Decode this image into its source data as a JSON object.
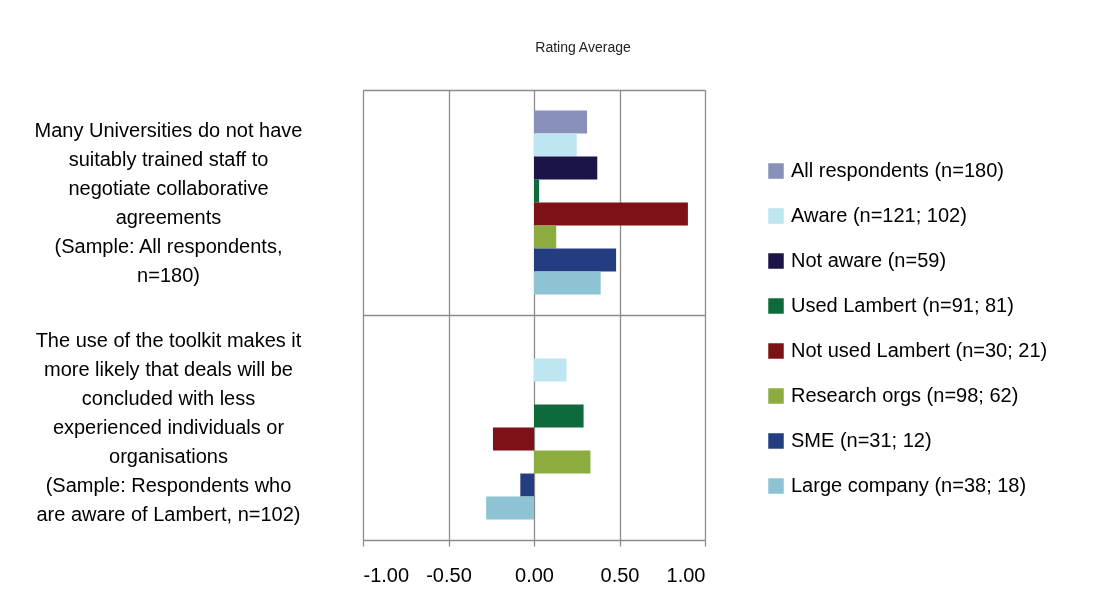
{
  "chart_data": {
    "type": "bar",
    "orientation": "horizontal",
    "title": "Rating Average",
    "categories": [
      "Many Universities do not have\nsuitably trained staff to\nnegotiate collaborative\nagreements\n(Sample: All respondents,\nn=180)",
      "The use of the toolkit makes it\nmore likely that deals will be\nconcluded with less\nexperienced individuals or\norganisations\n(Sample: Respondents who\nare aware of Lambert, n=102)"
    ],
    "series": [
      {
        "name": "All respondents (n=180)",
        "color": "#8990b9",
        "values": [
          0.31,
          null
        ]
      },
      {
        "name": "Aware (n=121; 102)",
        "color": "#bee5f2",
        "values": [
          0.25,
          0.19
        ]
      },
      {
        "name": "Not aware (n=59)",
        "color": "#1b1448",
        "values": [
          0.37,
          null
        ]
      },
      {
        "name": "Used Lambert (n=91; 81)",
        "color": "#0f6a3b",
        "values": [
          0.03,
          0.29
        ]
      },
      {
        "name": "Not used Lambert (n=30; 21)",
        "color": "#7c1117",
        "values": [
          0.9,
          -0.24
        ]
      },
      {
        "name": "Research orgs (n=98; 62)",
        "color": "#8cac3f",
        "values": [
          0.13,
          0.33
        ]
      },
      {
        "name": "SME (n=31; 12)",
        "color": "#243c80",
        "values": [
          0.48,
          -0.08
        ]
      },
      {
        "name": "Large company (n=38; 18)",
        "color": "#8dc3d2",
        "values": [
          0.39,
          -0.28
        ]
      }
    ],
    "xlim": [
      -1,
      1
    ],
    "xticks": [
      {
        "value": -1,
        "label": "-1.00"
      },
      {
        "value": -0.5,
        "label": "-0.50"
      },
      {
        "value": 0,
        "label": "0.00"
      },
      {
        "value": 0.5,
        "label": "0.50"
      },
      {
        "value": 1,
        "label": "1.00"
      }
    ],
    "grid": true,
    "legend": "right"
  }
}
